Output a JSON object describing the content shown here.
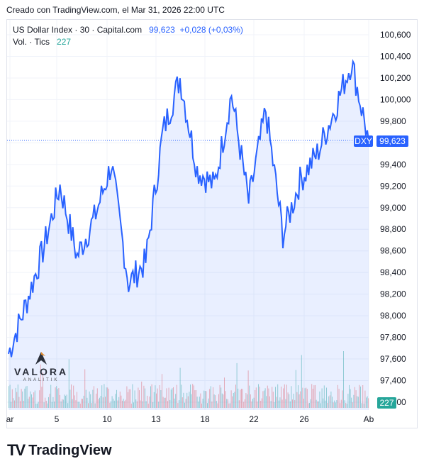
{
  "header": {
    "caption": "Creado con TradingView.com, el Mar 31, 2026 22:00 UTC"
  },
  "legend": {
    "symbol": "US Dollar Index · 30 · Capital.com",
    "last": "99,623",
    "change": "+0,028 (+0,03%)",
    "vol_label": "Vol. · Tics",
    "vol_value": "227"
  },
  "price_tag": {
    "symbol": "DXY",
    "value": "99,623"
  },
  "volume_tag": "227",
  "watermark": {
    "name": "VALORA",
    "sub": "ANALITIK"
  },
  "brand": "TradingView",
  "colors": {
    "line": "#2962ff",
    "fill": "#2962ff",
    "vol_up": "#26a69a",
    "vol_down": "#ef5350",
    "tag": "#2962ff"
  },
  "chart_data": {
    "type": "area",
    "title": "US Dollar Index · 30 · Capital.com",
    "xlabel": "",
    "ylabel": "",
    "ylim": [
      97.2,
      100.7
    ],
    "y_ticks": [
      "100,600",
      "100,400",
      "100,200",
      "100,000",
      "99,800",
      "99,600",
      "99,400",
      "99,200",
      "99,000",
      "98,800",
      "98,600",
      "98,400",
      "98,200",
      "98,000",
      "97,800",
      "97,600",
      "97,400",
      "97,200"
    ],
    "x_ticks": [
      "ar",
      "5",
      "10",
      "13",
      "18",
      "22",
      "26",
      "Ab"
    ],
    "grid": true,
    "series": [
      {
        "x": [
          "Mar 2",
          "Mar 3",
          "Mar 4",
          "Mar 5",
          "Mar 6",
          "Mar 9",
          "Mar 10",
          "Mar 11",
          "Mar 12",
          "Mar 13",
          "Mar 16",
          "Mar 17",
          "Mar 18",
          "Mar 19",
          "Mar 20",
          "Mar 23",
          "Mar 24",
          "Mar 25",
          "Mar 26",
          "Mar 27",
          "Mar 30",
          "Mar 31"
        ],
        "values": [
          97.65,
          98.1,
          98.6,
          99.2,
          98.55,
          98.9,
          99.4,
          98.3,
          98.5,
          99.7,
          100.2,
          99.35,
          99.2,
          100.05,
          99.05,
          99.9,
          98.75,
          99.25,
          99.5,
          99.9,
          100.35,
          99.62
        ]
      }
    ],
    "last_price": 99.623
  }
}
